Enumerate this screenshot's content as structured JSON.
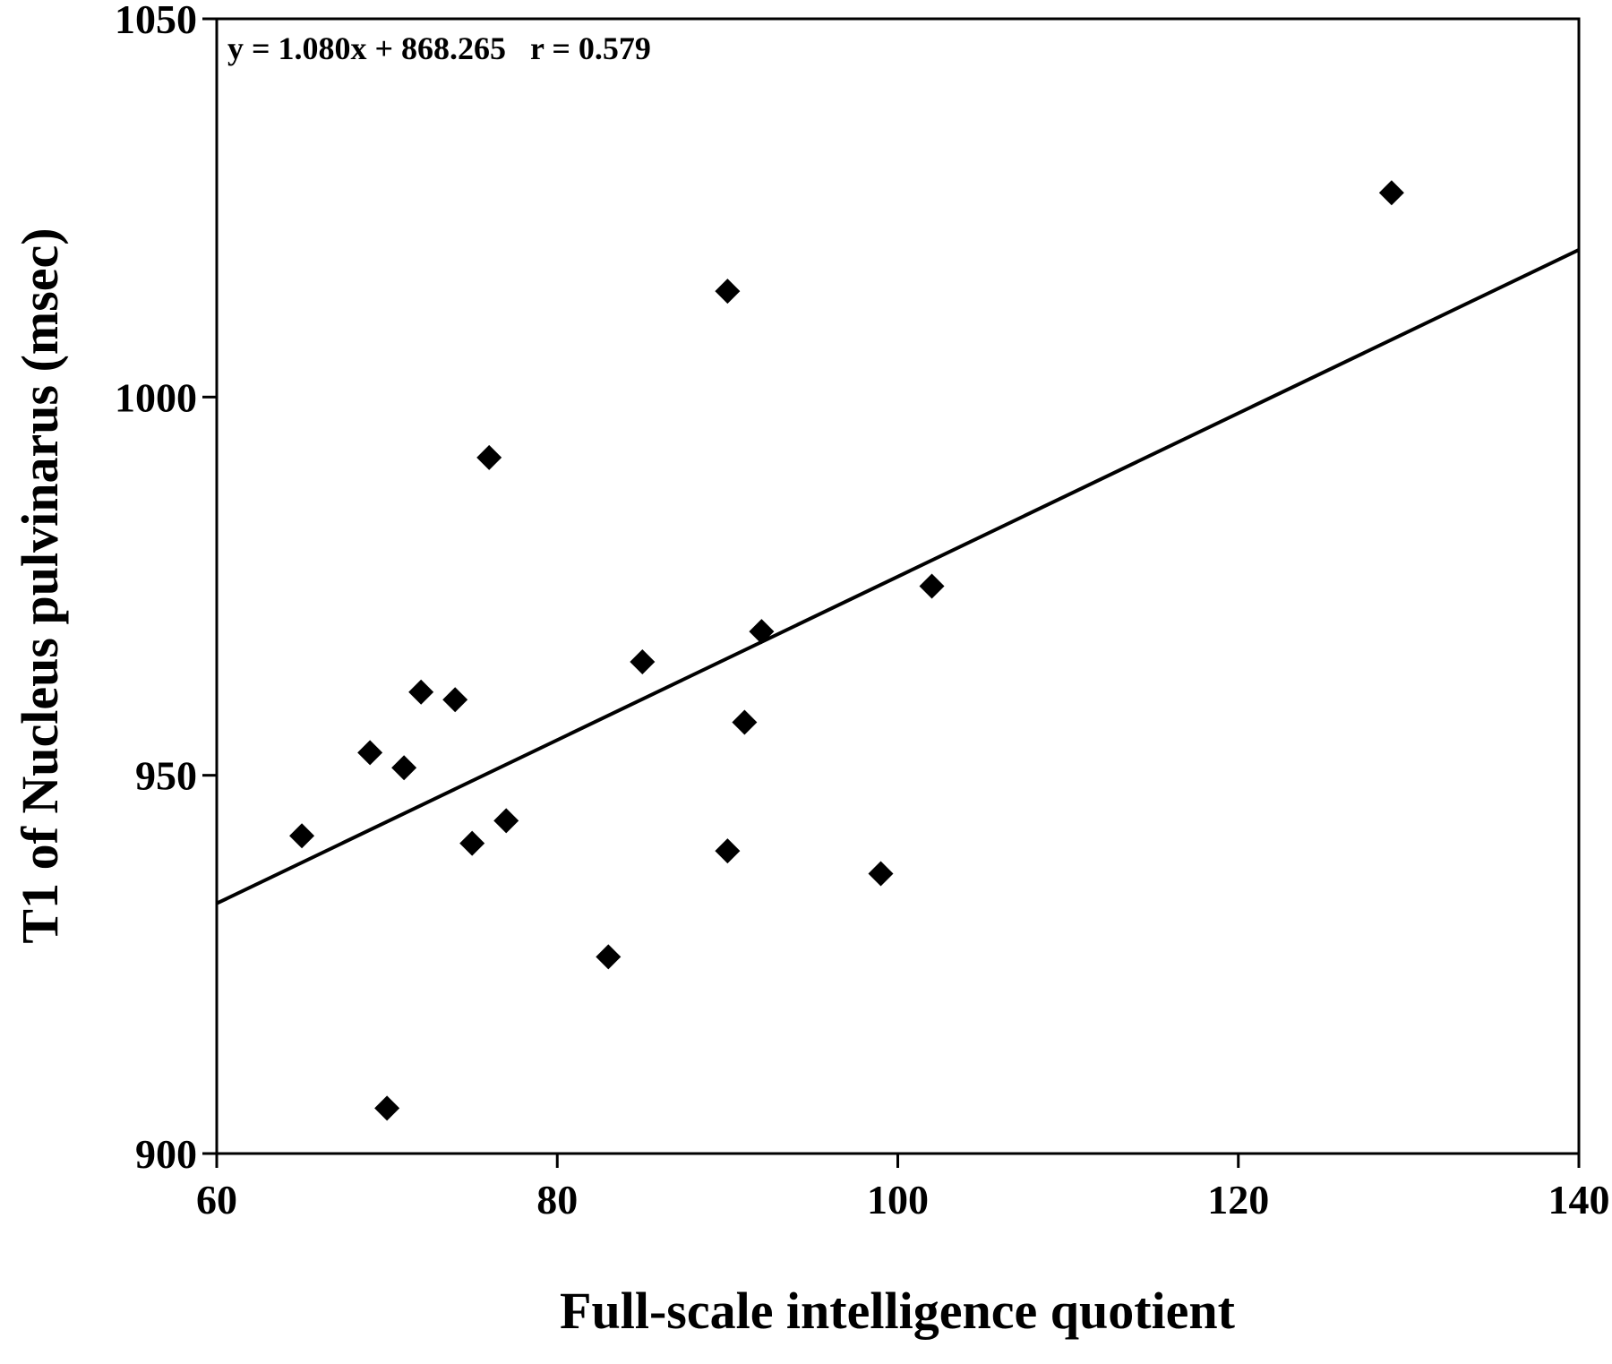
{
  "chart_data": {
    "type": "scatter",
    "title": "",
    "xlabel": "Full-scale intelligence quotient",
    "ylabel": "T1 of Nucleus pulvinarus (msec)",
    "xlim": [
      60,
      140
    ],
    "ylim": [
      900,
      1050
    ],
    "x_ticks": [
      60,
      80,
      100,
      120,
      140
    ],
    "y_ticks": [
      900,
      950,
      1000,
      1050
    ],
    "grid": false,
    "legend": "none",
    "marker": "diamond",
    "marker_color": "#000000",
    "annotation": "y = 1.080x + 868.265   r = 0.579",
    "fit_line": {
      "slope": 1.08,
      "intercept": 868.265,
      "x_range": [
        60,
        140
      ]
    },
    "points": [
      {
        "x": 65,
        "y": 942
      },
      {
        "x": 69,
        "y": 953
      },
      {
        "x": 70,
        "y": 906
      },
      {
        "x": 71,
        "y": 951
      },
      {
        "x": 72,
        "y": 961
      },
      {
        "x": 74,
        "y": 960
      },
      {
        "x": 75,
        "y": 941
      },
      {
        "x": 76,
        "y": 992
      },
      {
        "x": 77,
        "y": 944
      },
      {
        "x": 83,
        "y": 926
      },
      {
        "x": 85,
        "y": 965
      },
      {
        "x": 90,
        "y": 1014
      },
      {
        "x": 90,
        "y": 940
      },
      {
        "x": 91,
        "y": 957
      },
      {
        "x": 92,
        "y": 969
      },
      {
        "x": 99,
        "y": 937
      },
      {
        "x": 102,
        "y": 975
      },
      {
        "x": 129,
        "y": 1027
      }
    ]
  }
}
